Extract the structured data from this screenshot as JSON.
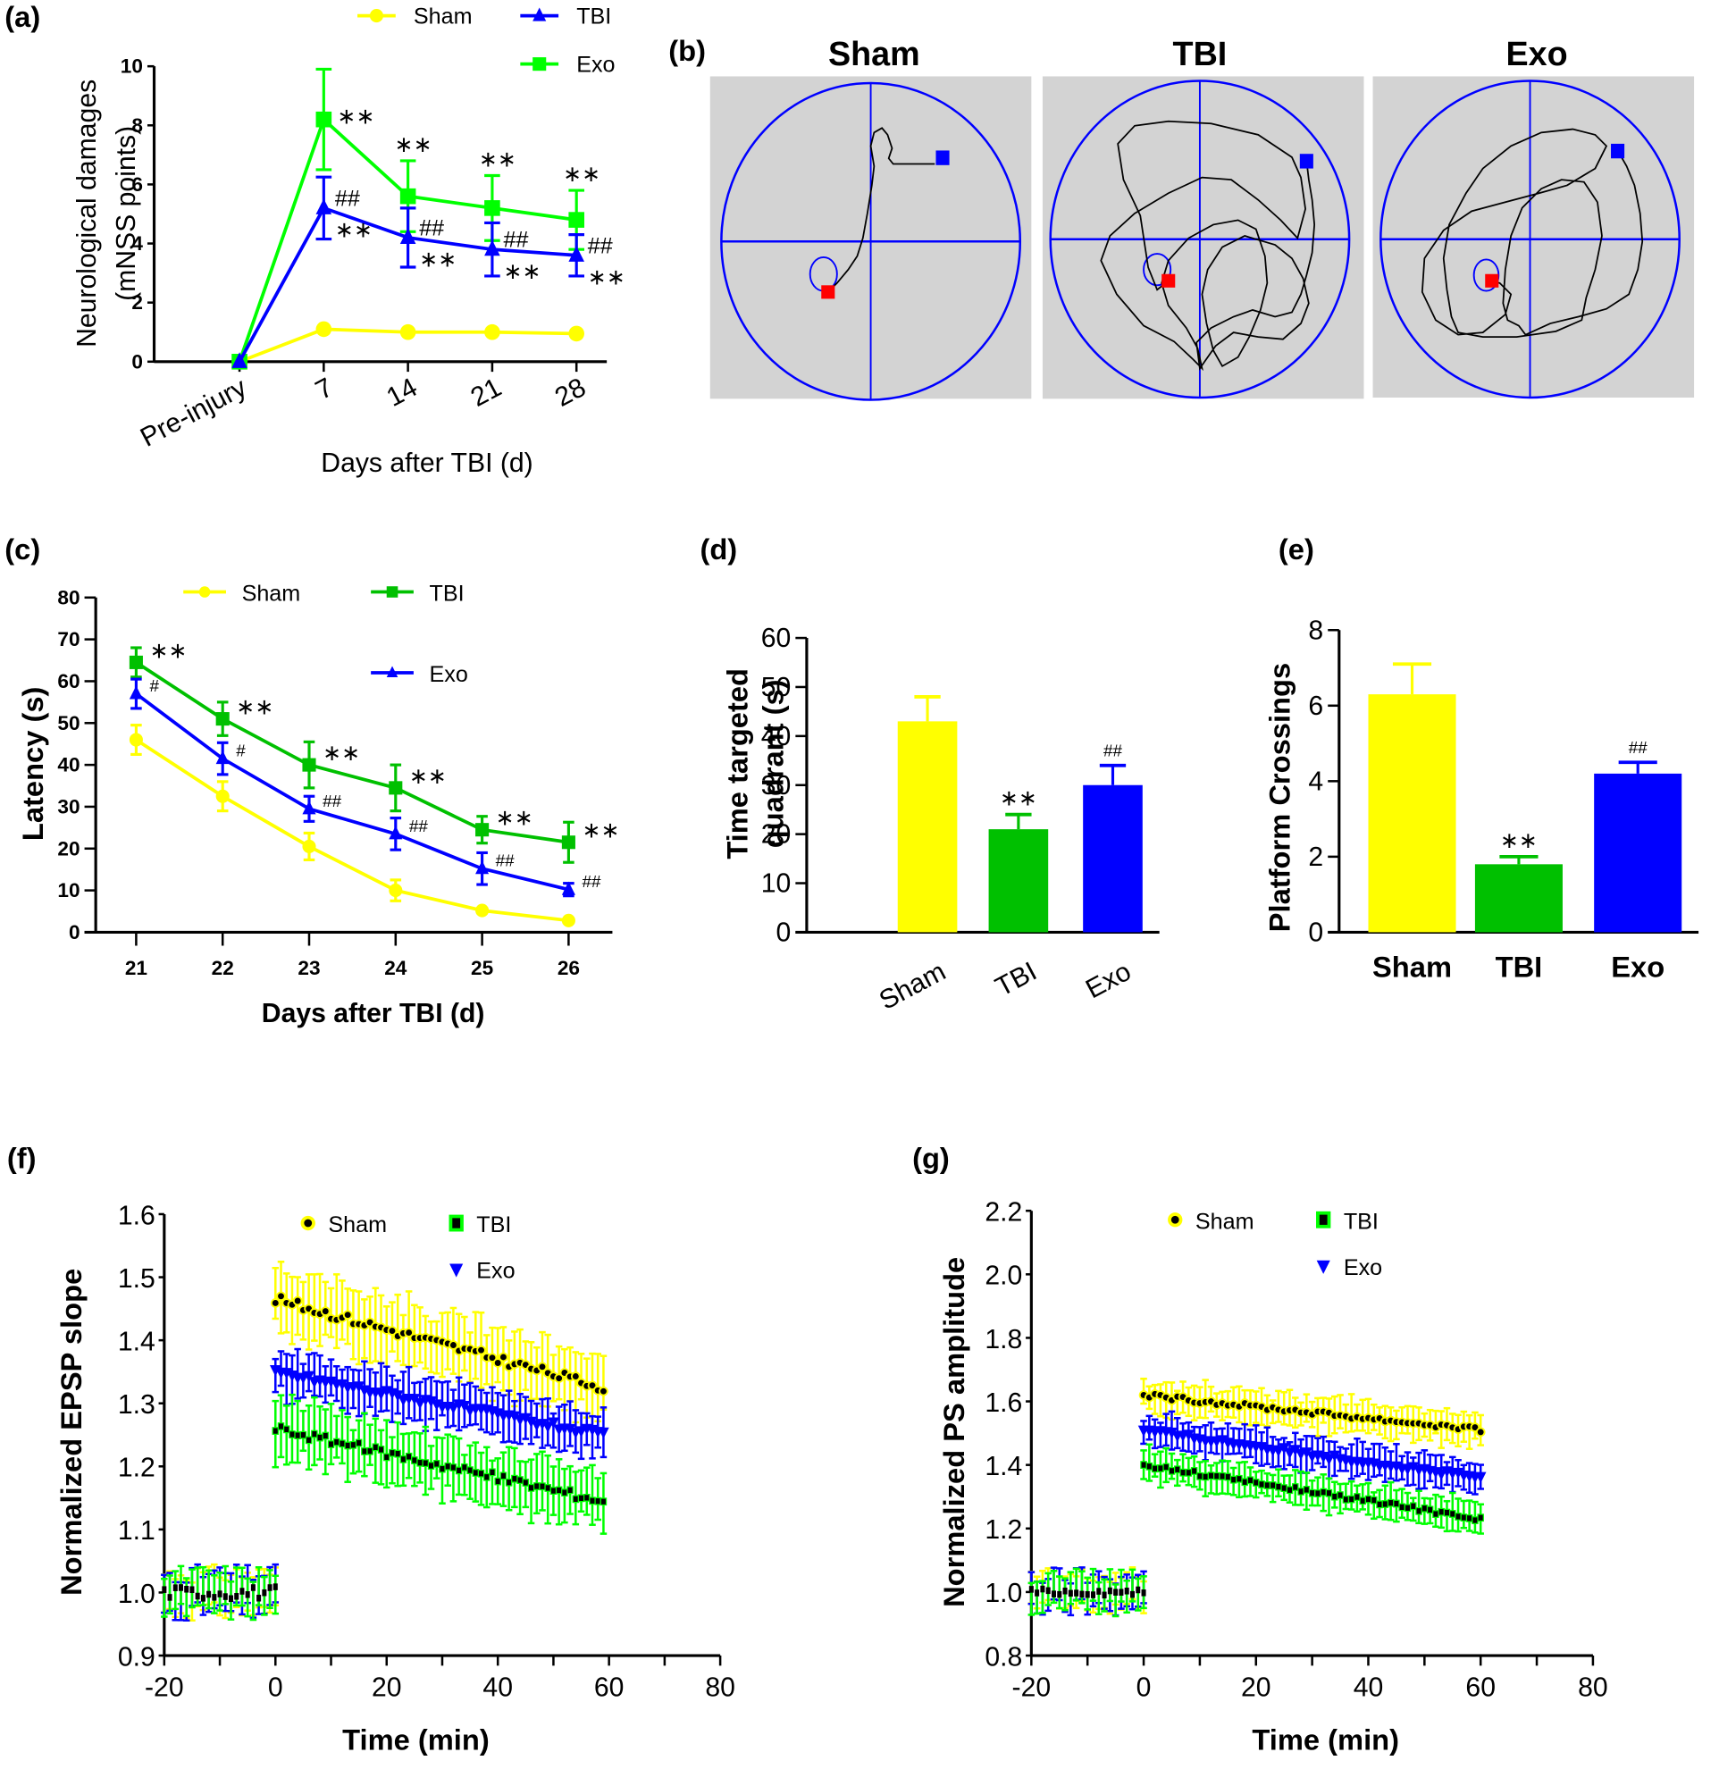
{
  "colors": {
    "sham": "#ffff00",
    "tbi_blue": "#0000ff",
    "exo_green": "#00ff00",
    "bar_green": "#00c000",
    "ltp_green": "#00ff00",
    "pool_bg": "#d3d3d3",
    "pool_line": "#0000ff",
    "start_marker": "#0000ff",
    "platform_marker": "#ff0000",
    "path": "#000000"
  },
  "chart_data": [
    {
      "id": "a",
      "panel_label": "(a)",
      "type": "line",
      "title": "",
      "xlabel": "Days after TBI (d)",
      "ylabel_line1": "Neurological damages",
      "ylabel_line2": "(mNSS points)",
      "categories": [
        "Pre-injury",
        "7",
        "14",
        "21",
        "28"
      ],
      "ylim": [
        0,
        10
      ],
      "yticks": [
        "0",
        "2",
        "4",
        "6",
        "8",
        "10"
      ],
      "legend": [
        "Sham",
        "TBI",
        "Exo"
      ],
      "series": [
        {
          "name": "Sham",
          "color": "#ffff00",
          "marker": "circle",
          "values": [
            0,
            1.1,
            1.0,
            1.0,
            0.95
          ],
          "err": [
            0,
            0,
            0,
            0,
            0
          ]
        },
        {
          "name": "TBI",
          "color": "#0000ff",
          "marker": "triangle",
          "values": [
            0,
            5.2,
            4.2,
            3.8,
            3.6
          ],
          "err": [
            0,
            1.05,
            1.0,
            0.9,
            0.7
          ]
        },
        {
          "name": "Exo",
          "color": "#00ff00",
          "marker": "square",
          "values": [
            0,
            8.2,
            5.6,
            5.2,
            4.8
          ],
          "err": [
            0,
            1.7,
            1.2,
            1.1,
            1.0
          ]
        }
      ],
      "annotations": [
        {
          "series": "Exo",
          "index": 1,
          "text": "**",
          "pos": "right"
        },
        {
          "series": "Exo",
          "index": 2,
          "text": "**",
          "pos": "above"
        },
        {
          "series": "Exo",
          "index": 3,
          "text": "**",
          "pos": "above"
        },
        {
          "series": "Exo",
          "index": 4,
          "text": "**",
          "pos": "above"
        },
        {
          "series": "TBI",
          "index": 1,
          "text": "##",
          "pos": "upper-right"
        },
        {
          "series": "TBI",
          "index": 1,
          "text": "**",
          "pos": "lower-right"
        },
        {
          "series": "TBI",
          "index": 2,
          "text": "##",
          "pos": "upper-right"
        },
        {
          "series": "TBI",
          "index": 2,
          "text": "**",
          "pos": "lower-right"
        },
        {
          "series": "TBI",
          "index": 3,
          "text": "##",
          "pos": "upper-right"
        },
        {
          "series": "TBI",
          "index": 3,
          "text": "**",
          "pos": "lower-right"
        },
        {
          "series": "TBI",
          "index": 4,
          "text": "##",
          "pos": "upper-right"
        },
        {
          "series": "TBI",
          "index": 4,
          "text": "**",
          "pos": "lower-right"
        }
      ]
    },
    {
      "id": "c",
      "panel_label": "(c)",
      "type": "line",
      "title": "",
      "xlabel": "Days after TBI (d)",
      "ylabel": "Latency (s)",
      "categories": [
        "21",
        "22",
        "23",
        "24",
        "25",
        "26"
      ],
      "ylim": [
        0,
        80
      ],
      "yticks": [
        "0",
        "10",
        "20",
        "30",
        "40",
        "50",
        "60",
        "70",
        "80"
      ],
      "legend": [
        "Sham",
        "TBI",
        "Exo"
      ],
      "series": [
        {
          "name": "Sham",
          "color": "#ffff00",
          "marker": "circle",
          "values": [
            46,
            32.5,
            20.5,
            10,
            5.2,
            2.8
          ],
          "err": [
            3.5,
            3.5,
            3.2,
            2.5,
            0.5,
            0.5
          ]
        },
        {
          "name": "TBI",
          "color": "#00c000",
          "marker": "square",
          "values": [
            64.5,
            51,
            40,
            34.5,
            24.5,
            21.5
          ],
          "err": [
            3.5,
            4,
            5.5,
            5.5,
            3.2,
            4.8
          ]
        },
        {
          "name": "Exo",
          "color": "#0000ff",
          "marker": "triangle",
          "values": [
            57,
            41.5,
            29.5,
            23.5,
            15.2,
            10.2
          ],
          "err": [
            3.5,
            3.8,
            3,
            3.8,
            3.8,
            1.5
          ]
        }
      ],
      "annotations": [
        {
          "series": "TBI",
          "index": 0,
          "text": "**"
        },
        {
          "series": "TBI",
          "index": 1,
          "text": "**"
        },
        {
          "series": "TBI",
          "index": 2,
          "text": "**"
        },
        {
          "series": "TBI",
          "index": 3,
          "text": "**"
        },
        {
          "series": "TBI",
          "index": 4,
          "text": "**"
        },
        {
          "series": "TBI",
          "index": 5,
          "text": "**"
        },
        {
          "series": "Exo",
          "index": 0,
          "text": "#"
        },
        {
          "series": "Exo",
          "index": 1,
          "text": "#"
        },
        {
          "series": "Exo",
          "index": 2,
          "text": "##"
        },
        {
          "series": "Exo",
          "index": 3,
          "text": "##"
        },
        {
          "series": "Exo",
          "index": 4,
          "text": "##"
        },
        {
          "series": "Exo",
          "index": 5,
          "text": "##"
        }
      ]
    },
    {
      "id": "d",
      "panel_label": "(d)",
      "type": "bar",
      "title": "",
      "xlabel": "",
      "ylabel_line1": "Time targeted",
      "ylabel_line2": "quadrant (s)",
      "categories": [
        "Sham",
        "TBI",
        "Exo"
      ],
      "values": [
        43,
        21,
        30
      ],
      "err": [
        5,
        3,
        4
      ],
      "colors": [
        "#ffff00",
        "#00c000",
        "#0000ff"
      ],
      "annotations": [
        "",
        "**",
        "##"
      ],
      "ylim": [
        0,
        60
      ],
      "yticks": [
        "0",
        "10",
        "20",
        "30",
        "40",
        "50",
        "60"
      ]
    },
    {
      "id": "e",
      "panel_label": "(e)",
      "type": "bar",
      "title": "",
      "xlabel": "",
      "ylabel": "Platform Crossings",
      "categories": [
        "Sham",
        "TBI",
        "Exo"
      ],
      "values": [
        6.3,
        1.8,
        4.2
      ],
      "err": [
        0.8,
        0.2,
        0.3
      ],
      "colors": [
        "#ffff00",
        "#00c000",
        "#0000ff"
      ],
      "annotations": [
        "",
        "**",
        "##"
      ],
      "ylim": [
        0,
        8
      ],
      "yticks": [
        "0",
        "2",
        "4",
        "6",
        "8"
      ]
    },
    {
      "id": "f",
      "panel_label": "(f)",
      "type": "scatter",
      "title": "",
      "xlabel": "Time (min)",
      "ylabel": "Normalized EPSP slope",
      "xlim": [
        -20,
        80
      ],
      "ylim": [
        0.9,
        1.6
      ],
      "xticks": [
        "-20",
        "0",
        "20",
        "40",
        "60",
        "80"
      ],
      "yticks": [
        "0.9",
        "1.0",
        "1.1",
        "1.2",
        "1.3",
        "1.4",
        "1.5",
        "1.6"
      ],
      "legend": [
        "Sham",
        "TBI",
        "Exo"
      ],
      "baseline": {
        "x_range": [
          -20,
          0
        ],
        "value": 1.0,
        "err": 0.03
      },
      "series": [
        {
          "name": "Sham",
          "color": "#ffff00",
          "marker": "circle",
          "x_range": [
            0,
            59
          ],
          "start": 1.465,
          "end": 1.325,
          "err": 0.05
        },
        {
          "name": "TBI",
          "color": "#00ff00",
          "marker": "square",
          "x_range": [
            0,
            59
          ],
          "start": 1.26,
          "end": 1.145,
          "err": 0.045
        },
        {
          "name": "Exo",
          "color": "#0000ff",
          "marker": "triangle-down",
          "x_range": [
            0,
            59
          ],
          "start": 1.35,
          "end": 1.25,
          "err": 0.035
        }
      ]
    },
    {
      "id": "g",
      "panel_label": "(g)",
      "type": "scatter",
      "title": "",
      "xlabel": "Time (min)",
      "ylabel": "Normalized PS amplitude",
      "xlim": [
        -20,
        80
      ],
      "ylim": [
        0.8,
        2.2
      ],
      "xticks": [
        "-20",
        "0",
        "20",
        "40",
        "60",
        "80"
      ],
      "yticks": [
        "0.8",
        "1.0",
        "1.2",
        "1.4",
        "1.6",
        "1.8",
        "2.0",
        "2.2"
      ],
      "legend": [
        "Sham",
        "TBI",
        "Exo"
      ],
      "baseline": {
        "x_range": [
          -20,
          0
        ],
        "value": 1.0,
        "err": 0.05
      },
      "series": [
        {
          "name": "Sham",
          "color": "#ffff00",
          "marker": "circle",
          "x_range": [
            0,
            60
          ],
          "start": 1.62,
          "end": 1.51,
          "err": 0.05
        },
        {
          "name": "TBI",
          "color": "#00ff00",
          "marker": "square",
          "x_range": [
            0,
            60
          ],
          "start": 1.4,
          "end": 1.23,
          "err": 0.05
        },
        {
          "name": "Exo",
          "color": "#0000ff",
          "marker": "triangle-down",
          "x_range": [
            0,
            60
          ],
          "start": 1.51,
          "end": 1.36,
          "err": 0.05
        }
      ]
    }
  ],
  "panel_b": {
    "panel_label": "(b)",
    "pools": [
      {
        "title": "Sham"
      },
      {
        "title": "TBI"
      },
      {
        "title": "Exo"
      }
    ]
  }
}
